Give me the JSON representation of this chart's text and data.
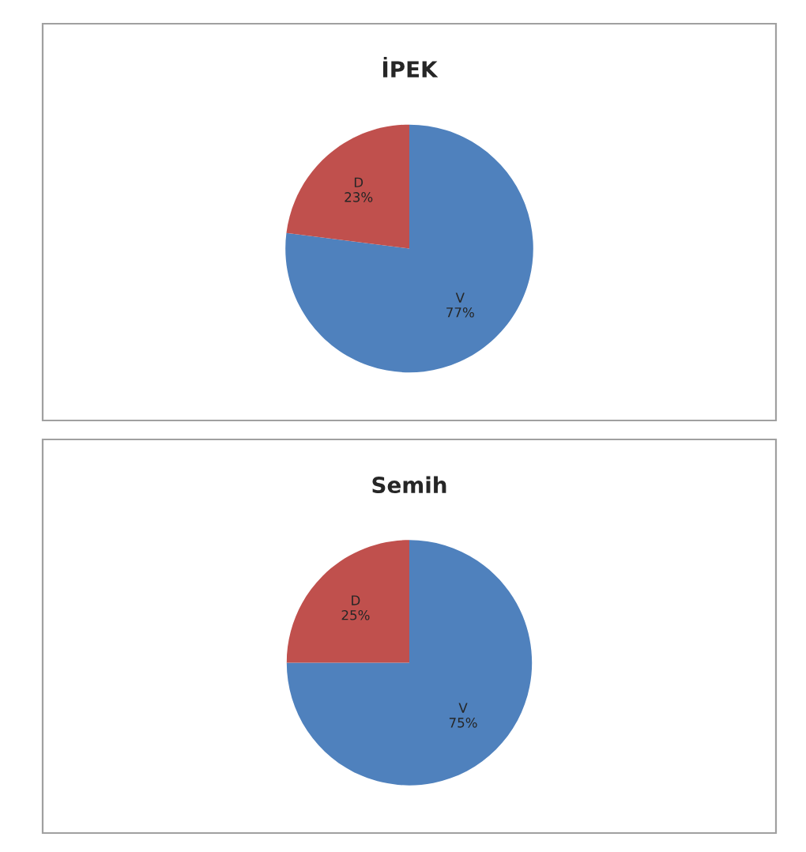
{
  "chart_data": [
    {
      "type": "pie",
      "title": "İPEK",
      "categories": [
        "V",
        "D"
      ],
      "values": [
        77,
        23
      ],
      "value_labels": [
        "77%",
        "23%"
      ],
      "colors": [
        "#4f81bd",
        "#c0504d"
      ],
      "legend": false
    },
    {
      "type": "pie",
      "title": "Semih",
      "categories": [
        "V",
        "D"
      ],
      "values": [
        75,
        25
      ],
      "value_labels": [
        "75%",
        "25%"
      ],
      "colors": [
        "#4f81bd",
        "#c0504d"
      ],
      "legend": false
    }
  ]
}
